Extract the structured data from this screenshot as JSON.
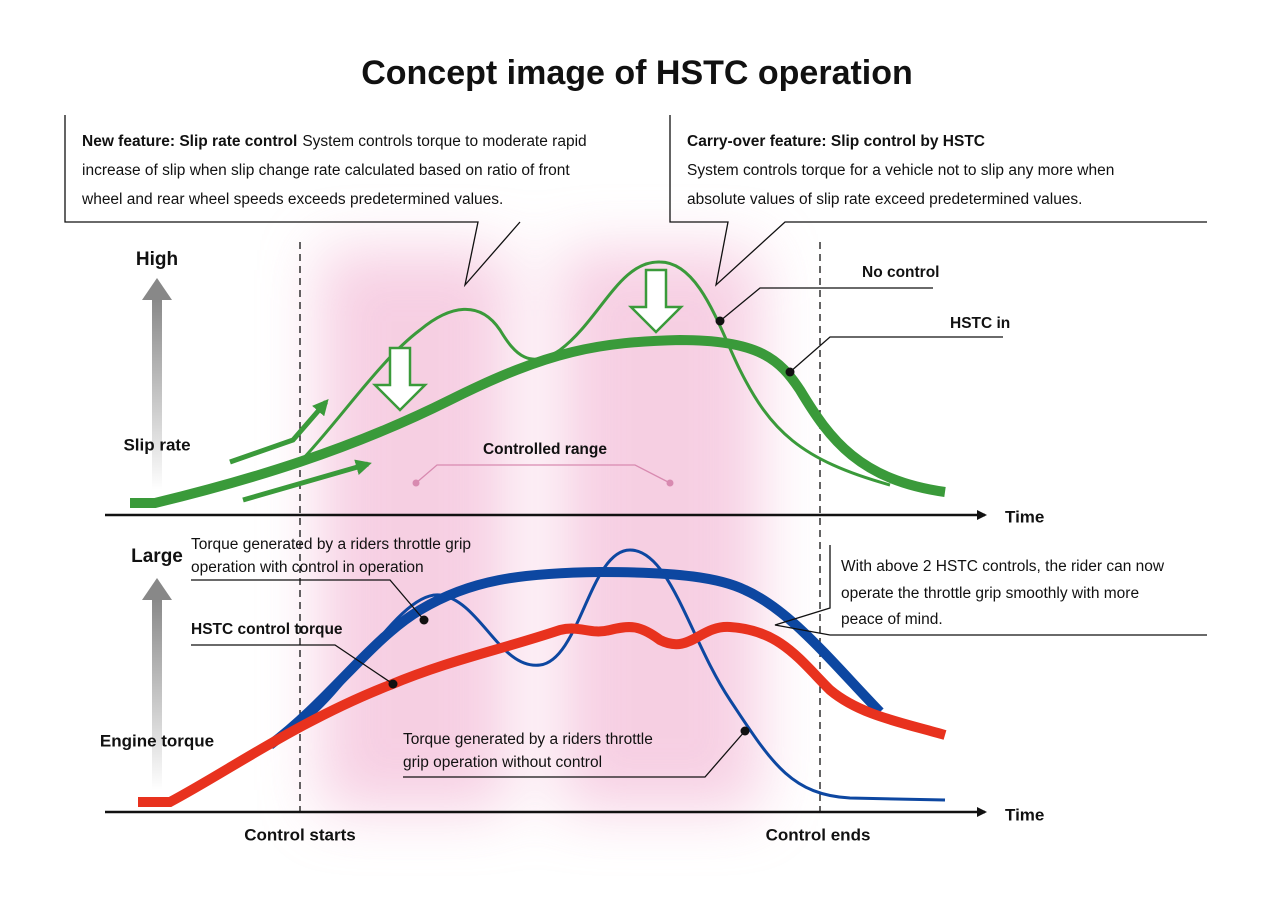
{
  "title": "Concept image of HSTC operation",
  "callouts": [
    {
      "heading": "New feature: Slip rate control",
      "lines": [
        "System controls torque to moderate rapid",
        "increase of slip when slip change rate calculated based on ratio of front",
        "wheel and rear wheel speeds exceeds predetermined values."
      ]
    },
    {
      "heading": "Carry-over feature: Slip control by HSTC",
      "lines": [
        "System controls torque for a vehicle not to slip any more when",
        "absolute values of slip rate exceed predetermined values."
      ]
    }
  ],
  "top_chart": {
    "y_high": "High",
    "y_label": "Slip rate",
    "no_control": "No control",
    "hstc_in": "HSTC in",
    "controlled_range": "Controlled range",
    "x_label": "Time"
  },
  "bottom_chart": {
    "y_large": "Large",
    "y_label": "Engine torque",
    "with_control": [
      "Torque generated by a riders throttle grip",
      "operation with control in operation"
    ],
    "hstc_torque": "HSTC control torque",
    "without_control": [
      "Torque generated by a riders throttle",
      "grip operation without control"
    ],
    "note": [
      "With above 2 HSTC controls, the rider can now",
      "operate the throttle grip smoothly with more",
      "peace of mind."
    ],
    "x_label": "Time"
  },
  "control_starts": "Control starts",
  "control_ends": "Control ends"
}
